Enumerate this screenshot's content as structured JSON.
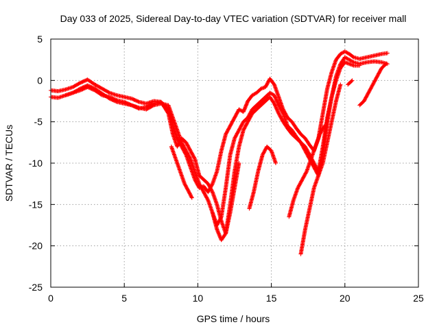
{
  "chart_data": {
    "type": "scatter",
    "title": "Day 033 of 2025, Sidereal Day-to-day VTEC variation (SDTVAR) for receiver mall",
    "xlabel": "GPS time / hours",
    "ylabel": "SDTVAR / TECUs",
    "xlim": [
      0,
      25
    ],
    "ylim": [
      -25,
      5
    ],
    "x_ticks": [
      0,
      5,
      10,
      15,
      20,
      25
    ],
    "y_ticks": [
      -25,
      -20,
      -15,
      -10,
      -5,
      0,
      5
    ],
    "grid": true,
    "marker": "+",
    "color": "#ff0000",
    "series": [
      {
        "x": [
          0,
          0.5,
          1,
          1.5,
          2,
          2.5,
          3,
          3.5,
          4,
          4.5,
          5,
          5.5,
          6,
          6.5,
          7,
          7.5,
          8,
          8.3,
          8.6,
          8.9,
          9.2,
          9.5,
          9.8,
          10.1,
          10.4,
          10.7,
          11,
          11.3,
          11.6,
          11.9,
          12.2,
          12.5,
          12.8,
          13.1,
          13.4,
          13.7,
          14,
          14.3,
          14.6,
          14.9,
          15.2,
          15.5,
          15.8,
          16.1,
          16.4,
          16.7,
          17,
          17.3,
          17.6,
          17.9,
          18.2,
          18.5,
          18.8,
          19.1,
          19.4,
          19.7,
          20,
          20.3,
          20.6,
          21,
          21.5,
          22,
          22.5,
          22.9
        ],
        "y": [
          -1.2,
          -1.3,
          -1.1,
          -0.8,
          -0.3,
          0.1,
          -0.5,
          -1.0,
          -1.5,
          -1.8,
          -2.0,
          -2.2,
          -2.6,
          -2.8,
          -2.5,
          -2.6,
          -3.5,
          -5.5,
          -7.0,
          -8.0,
          -9.0,
          -10.5,
          -12.0,
          -13.0,
          -12.8,
          -13.5,
          -12.5,
          -11.0,
          -8.5,
          -6.5,
          -5.5,
          -4.5,
          -3.5,
          -3.8,
          -2.5,
          -1.8,
          -1.5,
          -1.0,
          -0.8,
          0.2,
          -0.5,
          -2.0,
          -3.5,
          -4.5,
          -5.0,
          -5.8,
          -6.5,
          -7.0,
          -7.8,
          -8.5,
          -7.0,
          -4.0,
          -1.0,
          1.0,
          2.5,
          3.2,
          3.5,
          3.2,
          2.8,
          2.6,
          2.8,
          3.0,
          3.2,
          3.3
        ]
      },
      {
        "x": [
          0,
          0.5,
          1,
          1.5,
          2,
          2.5,
          3,
          3.5,
          4,
          4.5,
          5,
          5.5,
          6,
          6.5,
          7,
          7.5,
          8,
          8.3,
          8.6,
          8.9,
          9.2,
          9.5,
          9.8,
          10.1,
          10.4,
          10.7,
          11,
          11.3,
          11.6,
          11.9,
          12.2,
          12.5,
          12.8,
          13.1,
          13.4,
          13.7,
          14,
          14.3,
          14.6,
          14.9,
          15.2,
          15.5,
          15.8,
          16.1,
          16.4,
          16.7,
          17,
          17.3,
          17.6,
          17.9,
          18.2,
          18.5,
          18.8,
          19.1,
          19.4,
          19.7,
          20,
          20.3,
          20.6,
          21,
          21.5,
          22,
          22.5,
          22.9
        ],
        "y": [
          -2.0,
          -2.1,
          -1.8,
          -1.5,
          -1.0,
          -0.6,
          -1.0,
          -1.6,
          -2.2,
          -2.6,
          -2.8,
          -3.0,
          -3.3,
          -3.5,
          -3.0,
          -2.8,
          -3.0,
          -4.5,
          -6.0,
          -7.5,
          -8.5,
          -9.5,
          -11.0,
          -12.5,
          -13.5,
          -14.5,
          -16.0,
          -17.5,
          -16.5,
          -13.0,
          -9.0,
          -7.0,
          -6.0,
          -5.0,
          -4.5,
          -3.5,
          -3.0,
          -2.5,
          -2.0,
          -1.5,
          -1.8,
          -3.0,
          -4.0,
          -5.5,
          -6.0,
          -6.8,
          -7.5,
          -8.5,
          -9.5,
          -10.5,
          -11.5,
          -9.0,
          -5.0,
          -2.0,
          0.5,
          2.0,
          2.8,
          2.5,
          2.2,
          2.0,
          2.2,
          2.3,
          2.2,
          2.0
        ]
      },
      {
        "x": [
          1,
          1.5,
          2,
          2.5,
          3,
          3.5,
          4,
          4.5,
          5,
          5.5,
          6,
          6.5,
          7,
          7.5,
          8,
          8.3,
          8.6,
          8.9,
          9.2,
          9.5,
          9.8,
          10.1,
          10.4,
          10.7,
          11,
          11.3,
          11.6,
          11.9,
          12.2,
          12.5,
          12.8,
          13.1,
          13.4,
          13.7,
          14,
          14.3,
          14.6,
          14.9,
          15.2,
          15.5,
          15.8,
          16.1,
          16.4,
          16.7,
          17,
          17.3,
          17.6,
          17.9,
          18.2,
          18.5,
          18.8,
          19.1,
          19.4,
          19.7,
          20,
          20.3,
          20.6,
          21
        ],
        "y": [
          -1.8,
          -1.5,
          -1.2,
          -0.8,
          -1.2,
          -1.8,
          -2.0,
          -2.4,
          -2.6,
          -3.0,
          -3.4,
          -3.2,
          -2.8,
          -2.6,
          -4.0,
          -6.5,
          -8.0,
          -7.0,
          -7.5,
          -8.5,
          -9.5,
          -11.5,
          -12.0,
          -12.5,
          -13.5,
          -15.0,
          -17.0,
          -18.5,
          -15.0,
          -11.0,
          -8.0,
          -6.0,
          -5.0,
          -4.0,
          -3.5,
          -3.0,
          -2.5,
          -2.0,
          -2.8,
          -4.0,
          -5.0,
          -5.8,
          -6.5,
          -7.0,
          -7.5,
          -8.0,
          -9.0,
          -10.0,
          -11.0,
          -8.0,
          -4.5,
          -2.0,
          0.0,
          1.5,
          2.2,
          2.0,
          1.8,
          1.8
        ]
      },
      {
        "x": [
          8.2,
          8.5,
          8.8,
          9.1,
          9.4,
          9.6
        ],
        "y": [
          -8.0,
          -9.5,
          -11.0,
          -12.5,
          -13.5,
          -14.2
        ]
      },
      {
        "x": [
          11.0,
          11.3,
          11.6,
          11.9,
          12.2,
          12.5,
          12.8
        ],
        "y": [
          -16.0,
          -18.0,
          -19.3,
          -18.5,
          -16.0,
          -13.0,
          -10.0
        ]
      },
      {
        "x": [
          13.5,
          13.8,
          14.1,
          14.4,
          14.7,
          15.0,
          15.3
        ],
        "y": [
          -15.5,
          -13.5,
          -11.0,
          -9.0,
          -8.0,
          -8.5,
          -10.0
        ]
      },
      {
        "x": [
          16.2,
          16.5,
          16.8,
          17.1,
          17.4,
          17.7,
          18.0,
          18.3,
          18.6
        ],
        "y": [
          -16.5,
          -14.5,
          -13.0,
          -12.0,
          -11.0,
          -9.5,
          -8.0,
          -6.5,
          -5.5
        ]
      },
      {
        "x": [
          17.0,
          17.3,
          17.6,
          17.9,
          18.2,
          18.5,
          18.8,
          19.1,
          19.4,
          19.7
        ],
        "y": [
          -21.0,
          -18.0,
          -15.5,
          -13.0,
          -11.5,
          -10.0,
          -7.5,
          -5.0,
          -2.5,
          -0.5
        ]
      },
      {
        "x": [
          20.2,
          20.5
        ],
        "y": [
          -0.5,
          0.0
        ]
      },
      {
        "x": [
          21.0,
          21.3,
          21.6,
          21.9,
          22.2,
          22.5,
          22.8
        ],
        "y": [
          -3.0,
          -2.5,
          -1.5,
          -0.5,
          0.5,
          1.5,
          2.0
        ]
      }
    ]
  }
}
